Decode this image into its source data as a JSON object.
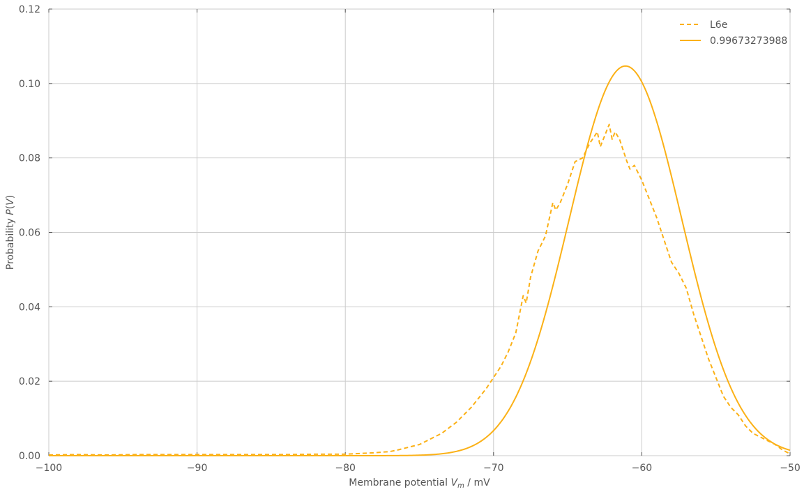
{
  "chart_data": {
    "type": "line",
    "xlabel": "Membrane potential V_m / mV",
    "xlabel_parts": {
      "prefix": "Membrane potential ",
      "var": "V",
      "sub": "m",
      "suffix": " / mV"
    },
    "ylabel": "Probability P(V)",
    "ylabel_parts": {
      "prefix": "Probability ",
      "var": "P",
      "open": "(",
      "inner": "V",
      "close": ")"
    },
    "xlim": [
      -100,
      -50
    ],
    "ylim": [
      0,
      0.12
    ],
    "grid": true,
    "legend_position": "top-right",
    "x_ticks": [
      -100,
      -90,
      -80,
      -70,
      -60,
      -50
    ],
    "x_tick_labels": [
      "−100",
      "−90",
      "−80",
      "−70",
      "−60",
      "−50"
    ],
    "y_ticks": [
      0,
      0.02,
      0.04,
      0.06,
      0.08,
      0.1,
      0.12
    ],
    "y_tick_labels": [
      "0.00",
      "0.02",
      "0.04",
      "0.06",
      "0.08",
      "0.10",
      "0.12"
    ],
    "series": [
      {
        "name": "L6e",
        "style": "dashed",
        "color": "#fbb117",
        "x": [
          -100,
          -98,
          -96,
          -94,
          -92,
          -90,
          -88,
          -86,
          -84,
          -82,
          -80,
          -79,
          -78,
          -77,
          -76.5,
          -76,
          -75.5,
          -75,
          -74.5,
          -74,
          -73.5,
          -73,
          -72.5,
          -72,
          -71.5,
          -71,
          -70.5,
          -70,
          -69.5,
          -69,
          -68.5,
          -68,
          -67.8,
          -67.5,
          -67,
          -66.5,
          -66,
          -65.8,
          -65.5,
          -65,
          -64.5,
          -64,
          -63.5,
          -63,
          -62.8,
          -62.5,
          -62.2,
          -62,
          -61.8,
          -61.5,
          -61,
          -60.8,
          -60.5,
          -60,
          -59.5,
          -59,
          -58.5,
          -58,
          -57.5,
          -57,
          -56.5,
          -56,
          -55.5,
          -55,
          -54.5,
          -54,
          -53.5,
          -53,
          -52.5,
          -52,
          -51.5,
          -51,
          -50.5,
          -50
        ],
        "y": [
          0.0002,
          0.0003,
          0.0002,
          0.0003,
          0.0003,
          0.0003,
          0.0003,
          0.0003,
          0.0003,
          0.0004,
          0.0004,
          0.0006,
          0.0008,
          0.0011,
          0.0015,
          0.002,
          0.0025,
          0.003,
          0.004,
          0.005,
          0.006,
          0.0075,
          0.009,
          0.011,
          0.013,
          0.0155,
          0.018,
          0.021,
          0.024,
          0.028,
          0.033,
          0.043,
          0.041,
          0.048,
          0.055,
          0.059,
          0.068,
          0.066,
          0.068,
          0.073,
          0.079,
          0.08,
          0.084,
          0.087,
          0.083,
          0.086,
          0.089,
          0.085,
          0.087,
          0.085,
          0.079,
          0.077,
          0.078,
          0.074,
          0.069,
          0.064,
          0.058,
          0.052,
          0.049,
          0.045,
          0.038,
          0.032,
          0.026,
          0.021,
          0.016,
          0.013,
          0.011,
          0.008,
          0.006,
          0.005,
          0.004,
          0.003,
          0.0015,
          0.0005
        ]
      },
      {
        "name": "0.99673273988",
        "style": "solid",
        "color": "#fbb117",
        "gaussian": {
          "mu": -61.1,
          "sigma": 3.8,
          "peak": 0.1047
        }
      }
    ]
  }
}
